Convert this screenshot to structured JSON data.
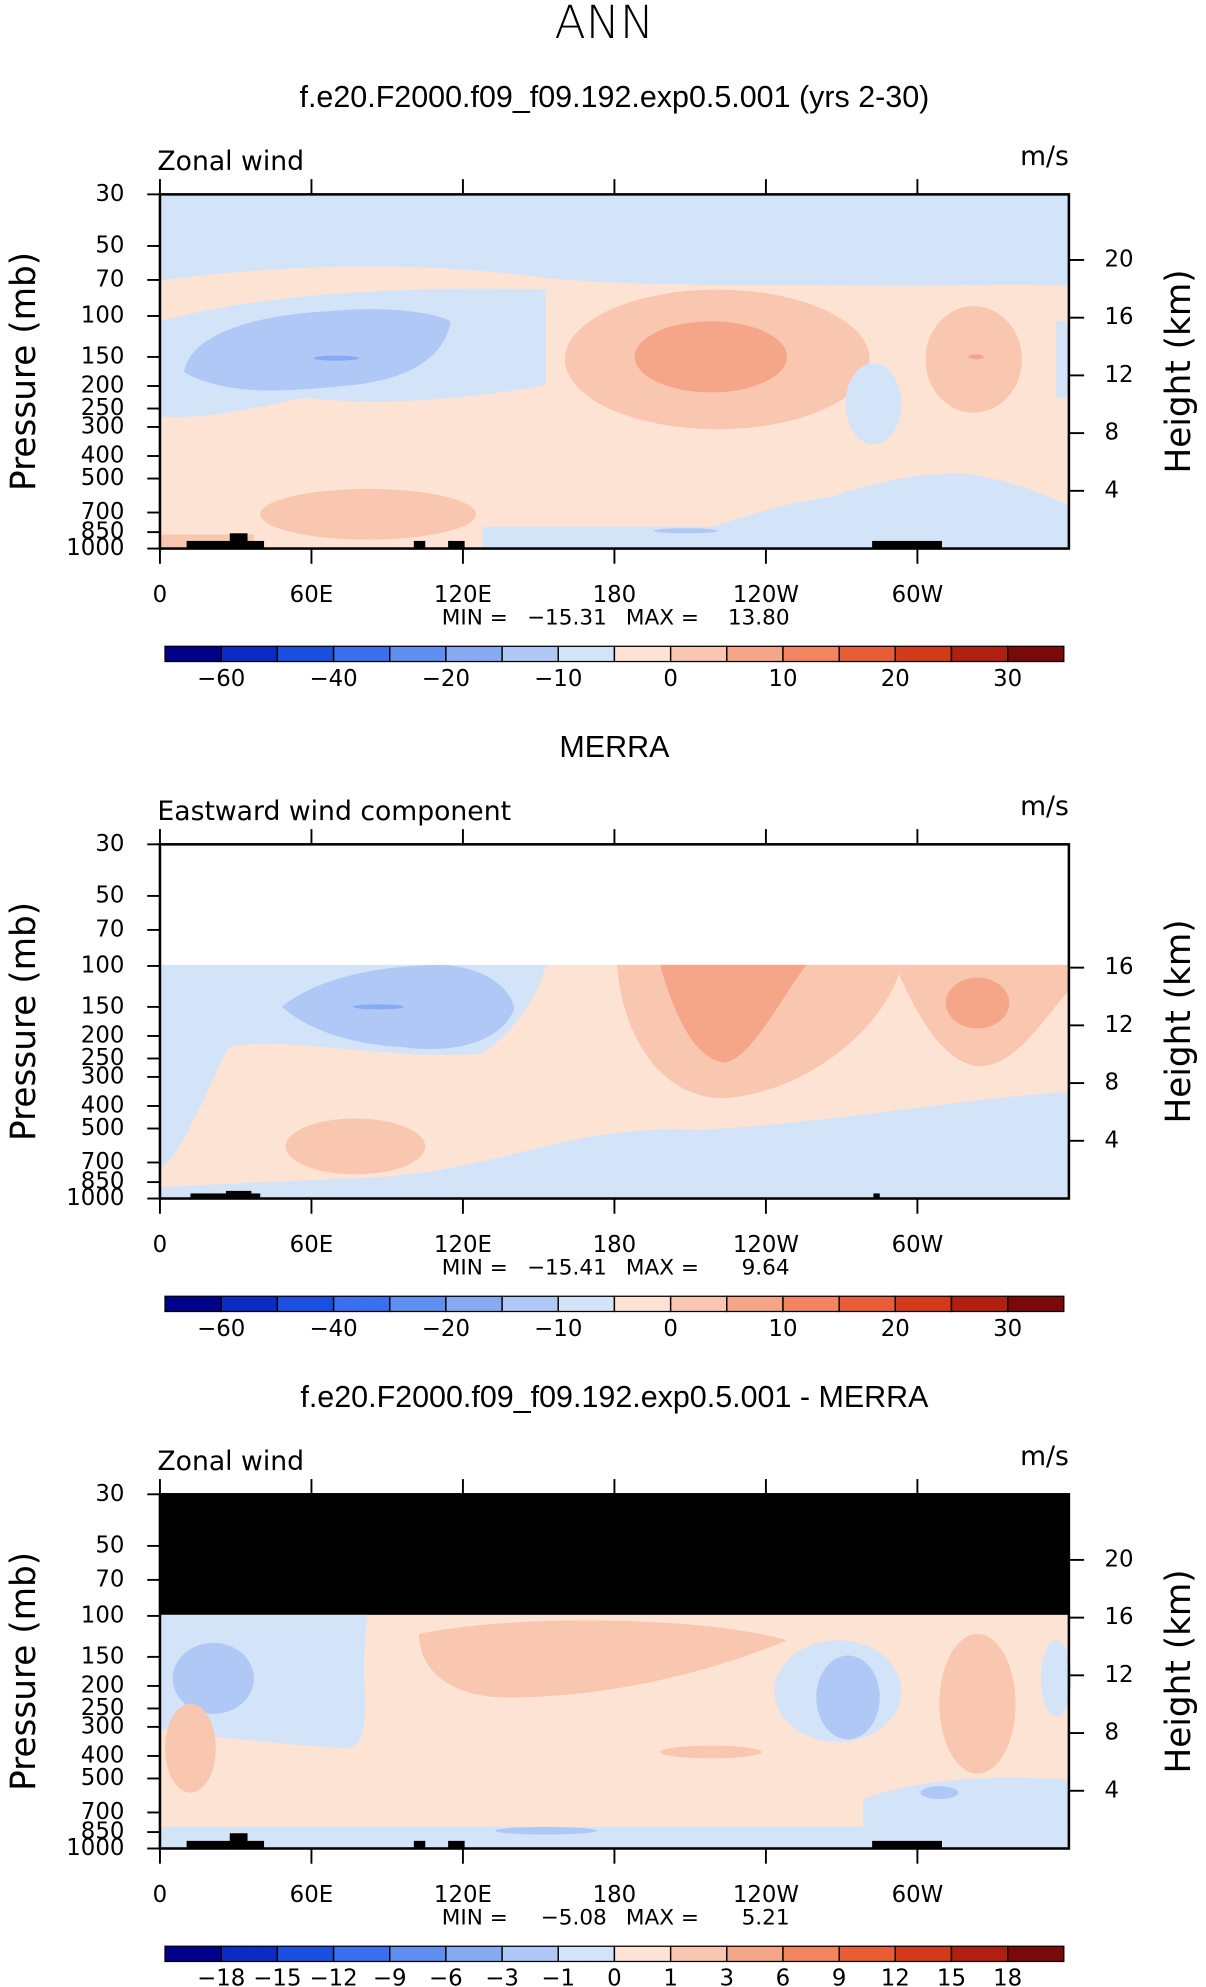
{
  "title": "ANN",
  "chart_data": [
    {
      "type": "contour",
      "title": "f.e20.F2000.f09_f09.192.exp0.5.001 (yrs 2-30)",
      "subtitle": "Zonal wind",
      "units": "m/s",
      "ylabel": "Pressure (mb)",
      "y2label": "Height (km)",
      "ylim": [
        1000,
        30
      ],
      "ylog": true,
      "yticks": [
        30,
        50,
        70,
        100,
        150,
        200,
        250,
        300,
        400,
        500,
        700,
        850,
        1000
      ],
      "y2ticks": [
        4,
        8,
        12,
        16,
        20
      ],
      "xlim": [
        0,
        360
      ],
      "xticks": [
        0,
        {
          "value": 60,
          "label": "60E"
        },
        {
          "value": 120,
          "label": "120E"
        },
        180,
        {
          "value": 240,
          "label": "120W"
        },
        {
          "value": 300,
          "label": "60W"
        }
      ],
      "stats": {
        "names": [
          "MIN =",
          "MAX ="
        ],
        "values": [
          -15.31,
          13.8
        ],
        "value_labels": [
          "−15.31",
          "13.80"
        ]
      },
      "colorbar": {
        "levels": [
          -60,
          -50,
          -40,
          -30,
          -20,
          -15,
          -10,
          -5,
          0,
          5,
          10,
          15,
          20,
          25,
          30
        ],
        "labels": [
          {
            "value": -60,
            "label": "−60"
          },
          {
            "value": -40,
            "label": "−40"
          },
          {
            "value": -20,
            "label": "−20"
          },
          {
            "value": -10,
            "label": "−10"
          },
          0,
          10,
          20,
          30
        ],
        "colors": [
          "#00008a",
          "#0a2bc4",
          "#1a50e0",
          "#3a6ff0",
          "#5f8ff0",
          "#87abf2",
          "#b0c8f5",
          "#d3e3f8",
          "#fde3d3",
          "#f9c6b0",
          "#f6a688",
          "#f28560",
          "#e85d35",
          "#d43a1a",
          "#b01f10",
          "#7a0a0a"
        ]
      }
    },
    {
      "type": "contour",
      "title": "MERRA",
      "subtitle": "Eastward wind component",
      "units": "m/s",
      "ylabel": "Pressure (mb)",
      "y2label": "Height (km)",
      "ylim": [
        1000,
        30
      ],
      "ylog": true,
      "yticks": [
        30,
        50,
        70,
        100,
        150,
        200,
        250,
        300,
        400,
        500,
        700,
        850,
        1000
      ],
      "y2ticks": [
        4,
        8,
        12,
        16
      ],
      "xlim": [
        0,
        360
      ],
      "xticks": [
        0,
        {
          "value": 60,
          "label": "60E"
        },
        {
          "value": 120,
          "label": "120E"
        },
        180,
        {
          "value": 240,
          "label": "120W"
        },
        {
          "value": 300,
          "label": "60W"
        }
      ],
      "stats": {
        "names": [
          "MIN =",
          "MAX ="
        ],
        "values": [
          -15.41,
          9.64
        ],
        "value_labels": [
          "−15.41",
          "9.64"
        ]
      },
      "colorbar": {
        "levels": [
          -60,
          -50,
          -40,
          -30,
          -20,
          -15,
          -10,
          -5,
          0,
          5,
          10,
          15,
          20,
          25,
          30
        ],
        "labels": [
          {
            "value": -60,
            "label": "−60"
          },
          {
            "value": -40,
            "label": "−40"
          },
          {
            "value": -20,
            "label": "−20"
          },
          {
            "value": -10,
            "label": "−10"
          },
          0,
          10,
          20,
          30
        ],
        "colors": [
          "#00008a",
          "#0a2bc4",
          "#1a50e0",
          "#3a6ff0",
          "#5f8ff0",
          "#87abf2",
          "#b0c8f5",
          "#d3e3f8",
          "#fde3d3",
          "#f9c6b0",
          "#f6a688",
          "#f28560",
          "#e85d35",
          "#d43a1a",
          "#b01f10",
          "#7a0a0a"
        ]
      }
    },
    {
      "type": "contour",
      "title": "f.e20.F2000.f09_f09.192.exp0.5.001 - MERRA",
      "subtitle": "Zonal wind",
      "units": "m/s",
      "ylabel": "Pressure (mb)",
      "y2label": "Height (km)",
      "ylim": [
        1000,
        30
      ],
      "ylog": true,
      "yticks": [
        30,
        50,
        70,
        100,
        150,
        200,
        250,
        300,
        400,
        500,
        700,
        850,
        1000
      ],
      "y2ticks": [
        4,
        8,
        12,
        16,
        20
      ],
      "xlim": [
        0,
        360
      ],
      "xticks": [
        0,
        {
          "value": 60,
          "label": "60E"
        },
        {
          "value": 120,
          "label": "120E"
        },
        180,
        {
          "value": 240,
          "label": "120W"
        },
        {
          "value": 300,
          "label": "60W"
        }
      ],
      "stats": {
        "names": [
          "MIN =",
          "MAX ="
        ],
        "values": [
          -5.08,
          5.21
        ],
        "value_labels": [
          "−5.08",
          "5.21"
        ]
      },
      "colorbar": {
        "levels": [
          -18,
          -15,
          -12,
          -9,
          -6,
          -3,
          -1,
          0,
          1,
          3,
          6,
          9,
          12,
          15,
          18
        ],
        "labels": [
          {
            "value": -18,
            "label": "−18"
          },
          {
            "value": -15,
            "label": "−15"
          },
          {
            "value": -12,
            "label": "−12"
          },
          {
            "value": -9,
            "label": "−9"
          },
          {
            "value": -6,
            "label": "−6"
          },
          {
            "value": -3,
            "label": "−3"
          },
          {
            "value": -1,
            "label": "−1"
          },
          0,
          1,
          3,
          6,
          9,
          12,
          15,
          18
        ],
        "colors": [
          "#00008a",
          "#0a2bc4",
          "#1a50e0",
          "#3a6ff0",
          "#5f8ff0",
          "#87abf2",
          "#b0c8f5",
          "#d3e3f8",
          "#fde3d3",
          "#f9c6b0",
          "#f6a688",
          "#f28560",
          "#e85d35",
          "#d43a1a",
          "#b01f10",
          "#7a0a0a"
        ]
      }
    }
  ]
}
